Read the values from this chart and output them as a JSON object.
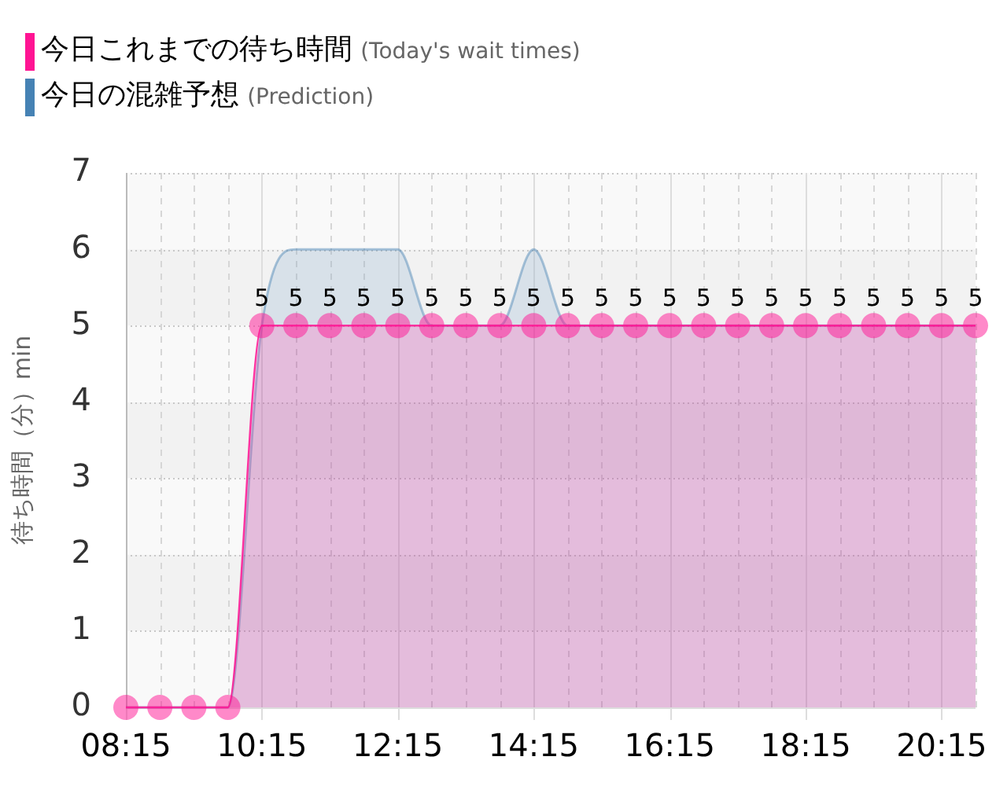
{
  "chart_data": {
    "type": "area",
    "ylabel": "待ち時間（分）min",
    "legend": "top left",
    "grid": true,
    "x": [
      8.25,
      8.75,
      9.25,
      9.75,
      10.25,
      10.75,
      11.25,
      11.75,
      12.25,
      12.75,
      13.25,
      13.75,
      14.25,
      14.75,
      15.25,
      15.75,
      16.25,
      16.75,
      17.25,
      17.75,
      18.25,
      18.75,
      19.25,
      19.75,
      20.25,
      20.75
    ],
    "xlim": [
      8.25,
      20.75
    ],
    "xticks": [
      {
        "value": 8.25,
        "label": "08:15"
      },
      {
        "value": 8.75,
        "label": null
      },
      {
        "value": 9.25,
        "label": null
      },
      {
        "value": 9.75,
        "label": null
      },
      {
        "value": 10.25,
        "label": "10:15"
      },
      {
        "value": 10.75,
        "label": null
      },
      {
        "value": 11.25,
        "label": null
      },
      {
        "value": 11.75,
        "label": null
      },
      {
        "value": 12.25,
        "label": "12:15"
      },
      {
        "value": 12.75,
        "label": null
      },
      {
        "value": 13.25,
        "label": null
      },
      {
        "value": 13.75,
        "label": null
      },
      {
        "value": 14.25,
        "label": "14:15"
      },
      {
        "value": 14.75,
        "label": null
      },
      {
        "value": 15.25,
        "label": null
      },
      {
        "value": 15.75,
        "label": null
      },
      {
        "value": 16.25,
        "label": "16:15"
      },
      {
        "value": 16.75,
        "label": null
      },
      {
        "value": 17.25,
        "label": null
      },
      {
        "value": 17.75,
        "label": null
      },
      {
        "value": 18.25,
        "label": "18:15"
      },
      {
        "value": 18.75,
        "label": null
      },
      {
        "value": 19.25,
        "label": null
      },
      {
        "value": 19.75,
        "label": null
      },
      {
        "value": 20.25,
        "label": "20:15"
      },
      {
        "value": 20.75,
        "label": null
      }
    ],
    "ylim": [
      0,
      7
    ],
    "yticks": [
      0,
      1,
      2,
      3,
      4,
      5,
      6,
      7
    ],
    "series": [
      {
        "name": "今日これまでの待ち時間 (Today's wait times)",
        "color": "#ff1493",
        "marker": "circle",
        "values": [
          0,
          0,
          0,
          0,
          5,
          5,
          5,
          5,
          5,
          5,
          5,
          5,
          5,
          5,
          5,
          5,
          5,
          5,
          5,
          5,
          5,
          5,
          5,
          5,
          5,
          5
        ],
        "value_labels": [
          null,
          null,
          null,
          null,
          "5",
          "5",
          "5",
          "5",
          "5",
          "5",
          "5",
          "5",
          "5",
          "5",
          "5",
          "5",
          "5",
          "5",
          "5",
          "5",
          "5",
          "5",
          "5",
          "5",
          "5",
          "5"
        ]
      },
      {
        "name": "今日の混雑予想 (Prediction)",
        "color": "#4682b4",
        "marker": "none",
        "values": [
          0,
          0,
          0,
          0,
          5,
          6,
          6,
          6,
          6,
          5,
          5,
          5,
          6,
          5,
          5,
          5,
          5,
          5,
          5,
          5,
          5,
          5,
          5,
          5,
          5,
          5
        ]
      }
    ]
  }
}
